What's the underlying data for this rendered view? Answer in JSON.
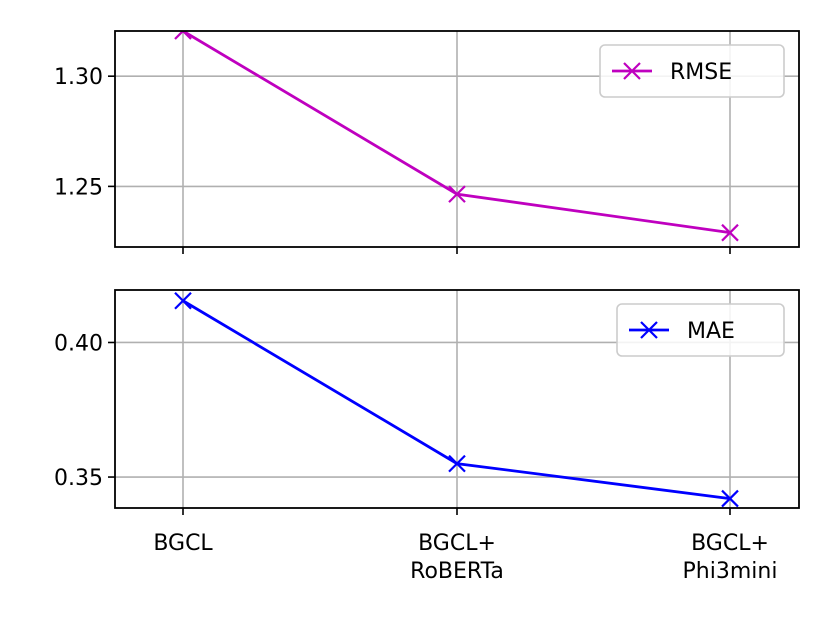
{
  "chart_data": {
    "type": "line",
    "categories": [
      [
        "BGCL"
      ],
      [
        "BGCL+",
        "RoBERTa"
      ],
      [
        "BGCL+",
        "Phi3mini"
      ]
    ],
    "x_tick_labels": [
      "BGCL",
      "BGCL+\nRoBERTa",
      "BGCL+\nPhi3mini"
    ],
    "grid": true,
    "shared_x": true,
    "panels": [
      {
        "legend_position": "upper right",
        "ylim": [
          1.2225,
          1.3205
        ],
        "yticks": [
          1.25,
          1.3
        ],
        "ytick_labels": [
          "1.25",
          "1.30"
        ],
        "series": [
          {
            "name": "RMSE",
            "color": "#bf00bf",
            "marker": "x",
            "values": [
              1.3205,
              1.2465,
              1.229
            ]
          }
        ]
      },
      {
        "legend_position": "upper right",
        "ylim": [
          0.3385,
          0.4195
        ],
        "yticks": [
          0.35,
          0.4
        ],
        "ytick_labels": [
          "0.35",
          "0.40"
        ],
        "series": [
          {
            "name": "MAE",
            "color": "#0000ff",
            "marker": "x",
            "values": [
              0.4155,
              0.355,
              0.342
            ]
          }
        ]
      }
    ]
  }
}
